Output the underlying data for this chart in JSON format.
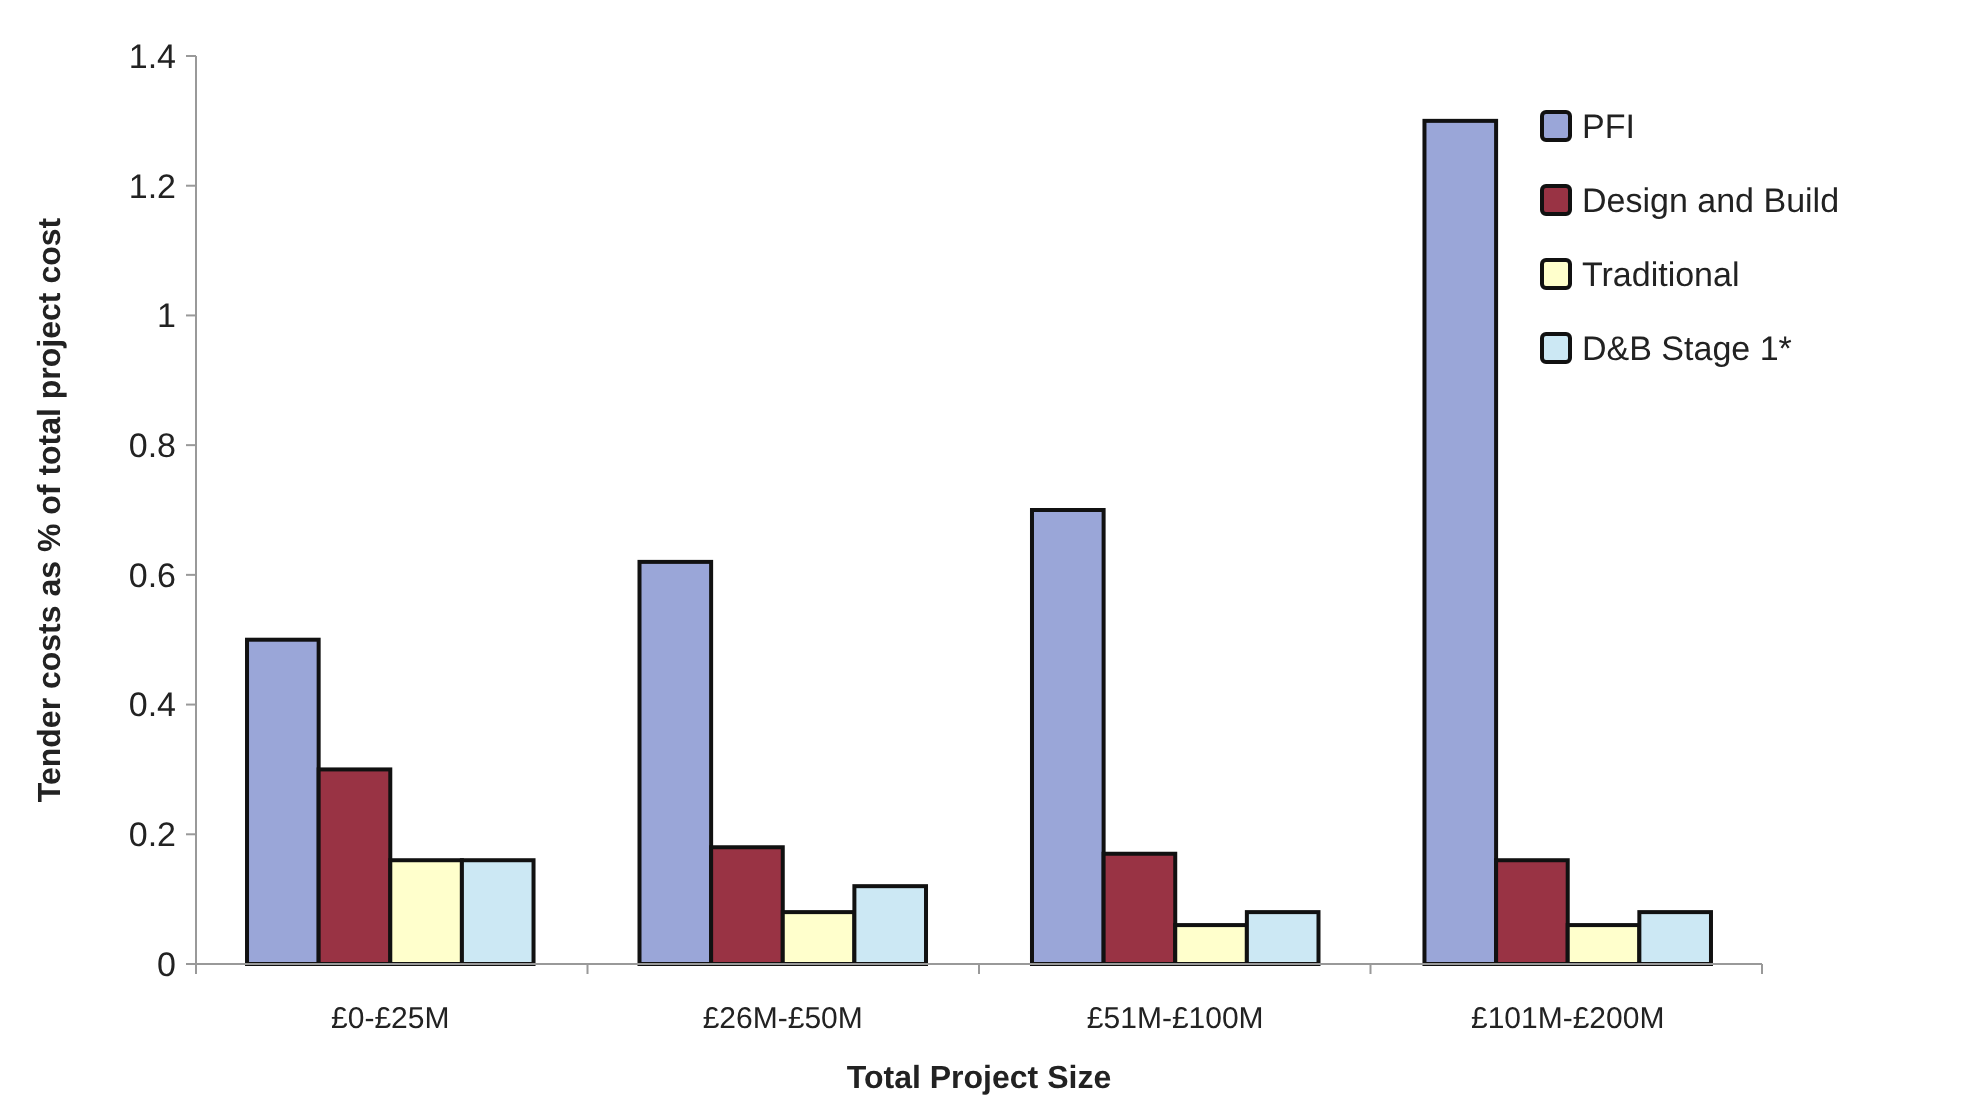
{
  "chart_data": {
    "type": "bar",
    "xlabel": "Total Project Size",
    "ylabel": "Tender costs as % of total project cost",
    "categories": [
      "£0-£25M",
      "£26M-£50M",
      "£51M-£100M",
      "£101M-£200M"
    ],
    "series": [
      {
        "name": "PFI",
        "color": "#9aa6d8",
        "values": [
          0.5,
          0.62,
          0.7,
          1.3
        ]
      },
      {
        "name": "Design and Build",
        "color": "#993344",
        "values": [
          0.3,
          0.18,
          0.17,
          0.16
        ]
      },
      {
        "name": "Traditional",
        "color": "#ffffcc",
        "values": [
          0.16,
          0.08,
          0.06,
          0.06
        ]
      },
      {
        "name": "D&B Stage 1*",
        "color": "#cce8f4",
        "values": [
          0.16,
          0.12,
          0.08,
          0.08
        ]
      }
    ],
    "ylim": [
      0,
      1.4
    ],
    "yticks": [
      0,
      0.2,
      0.4,
      0.6,
      0.8,
      1,
      1.2,
      1.4
    ],
    "legend": "top right"
  }
}
